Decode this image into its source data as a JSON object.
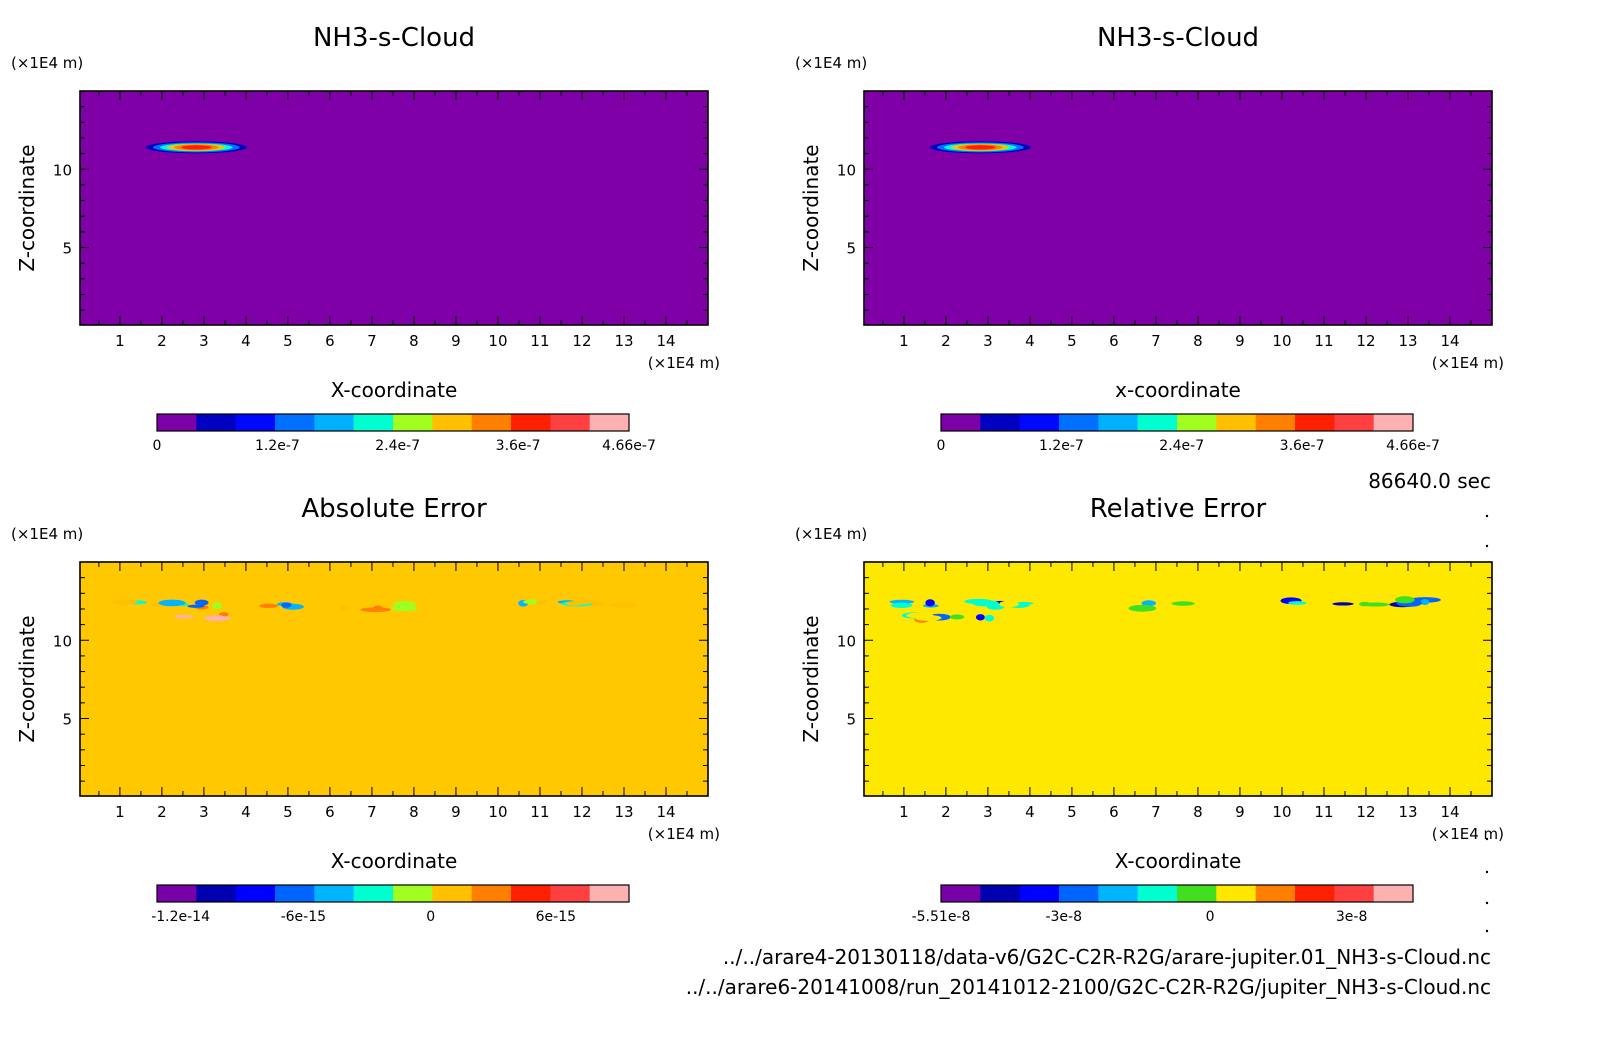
{
  "chart_data": [
    {
      "type": "heatmap",
      "title": "NH3-s-Cloud",
      "xlabel": "X-coordinate",
      "ylabel": "Z-coordinate",
      "x_unit": "(×1E4 m)",
      "y_unit": "(×1E4 m)",
      "xlim": [
        0.05,
        15
      ],
      "ylim": [
        0.05,
        15
      ],
      "x_ticks": [
        1,
        2,
        3,
        4,
        5,
        6,
        7,
        8,
        9,
        10,
        11,
        12,
        13,
        14
      ],
      "y_ticks": [
        5,
        10
      ],
      "background_color": "#8000a8",
      "features": [
        {
          "x": [
            1.5,
            3.9
          ],
          "z": 11.4,
          "level_center": 10,
          "description_level": "peak ~4.2e-7"
        }
      ],
      "colorbar": {
        "colors": [
          "#7b00a8",
          "#0000c0",
          "#0008ff",
          "#0070ff",
          "#00b0ff",
          "#00ffd0",
          "#a0ff20",
          "#ffc000",
          "#ff8000",
          "#ff2000",
          "#ff4040",
          "#ffb0b0"
        ],
        "tick_labels": [
          "0",
          "1.2e-7",
          "2.4e-7",
          "3.6e-7",
          "4.66e-7"
        ],
        "tick_positions": [
          0,
          0.255,
          0.51,
          0.765,
          1
        ]
      }
    },
    {
      "type": "heatmap",
      "title": "NH3-s-Cloud",
      "xlabel": "x-coordinate",
      "ylabel": "Z-coordinate",
      "x_unit": "(×1E4 m)",
      "y_unit": "(×1E4 m)",
      "xlim": [
        0.05,
        15
      ],
      "ylim": [
        0.05,
        15
      ],
      "x_ticks": [
        1,
        2,
        3,
        4,
        5,
        6,
        7,
        8,
        9,
        10,
        11,
        12,
        13,
        14
      ],
      "y_ticks": [
        5,
        10
      ],
      "background_color": "#8000a8",
      "features": [
        {
          "x": [
            1.5,
            3.9
          ],
          "z": 11.4,
          "level_center": 10,
          "description_level": "peak ~4.2e-7"
        }
      ],
      "colorbar": {
        "colors": [
          "#7b00a8",
          "#0000c0",
          "#0008ff",
          "#0070ff",
          "#00b0ff",
          "#00ffd0",
          "#a0ff20",
          "#ffc000",
          "#ff8000",
          "#ff2000",
          "#ff4040",
          "#ffb0b0"
        ],
        "tick_labels": [
          "0",
          "1.2e-7",
          "2.4e-7",
          "3.6e-7",
          "4.66e-7"
        ],
        "tick_positions": [
          0,
          0.255,
          0.51,
          0.765,
          1
        ]
      }
    },
    {
      "type": "heatmap",
      "title": "Absolute Error",
      "xlabel": "X-coordinate",
      "ylabel": "Z-coordinate",
      "x_unit": "(×1E4 m)",
      "y_unit": "(×1E4 m)",
      "xlim": [
        0.05,
        15
      ],
      "ylim": [
        0.05,
        15
      ],
      "x_ticks": [
        1,
        2,
        3,
        4,
        5,
        6,
        7,
        8,
        9,
        10,
        11,
        12,
        13,
        14
      ],
      "y_ticks": [
        5,
        10
      ],
      "background_color": "#ffc800",
      "features": [
        {
          "x": [
            0.9,
            5.2
          ],
          "z": 12.3,
          "level_center": 6,
          "description_level": "small positive"
        },
        {
          "x": [
            6.2,
            7.8
          ],
          "z": 12.1,
          "level_center": 6,
          "description_level": "small positive"
        },
        {
          "x": [
            10.2,
            13.5
          ],
          "z": 12.4,
          "level_center": 6,
          "description_level": "small positive"
        },
        {
          "x": [
            2.1,
            3.8
          ],
          "z": 11.5,
          "level_center": 10,
          "description_level": "mixed ±"
        }
      ],
      "colorbar": {
        "colors": [
          "#7800a8",
          "#0000b0",
          "#0000ff",
          "#0064ff",
          "#00b4ff",
          "#00ffd0",
          "#a0ff20",
          "#ffc000",
          "#ff8000",
          "#ff2000",
          "#ff4040",
          "#ffb0b0"
        ],
        "tick_labels": [
          "-1.2e-14",
          "-6e-15",
          "0",
          "6e-15"
        ],
        "tick_positions": [
          0.05,
          0.31,
          0.58,
          0.845
        ]
      }
    },
    {
      "type": "heatmap",
      "title": "Relative Error",
      "xlabel": "X-coordinate",
      "ylabel": "Z-coordinate",
      "x_unit": "(×1E4 m)",
      "y_unit": "(×1E4 m)",
      "xlim": [
        0.05,
        15
      ],
      "ylim": [
        0.05,
        15
      ],
      "x_ticks": [
        1,
        2,
        3,
        4,
        5,
        6,
        7,
        8,
        9,
        10,
        11,
        12,
        13,
        14
      ],
      "y_ticks": [
        5,
        10
      ],
      "background_color": "#ffe800",
      "features": [
        {
          "x": [
            0.9,
            4.5
          ],
          "z": 12.3,
          "level_center": 4,
          "description_level": "mixed"
        },
        {
          "x": [
            6.6,
            7.9
          ],
          "z": 12.2,
          "level_center": 5,
          "description_level": "mixed"
        },
        {
          "x": [
            10.2,
            13.6
          ],
          "z": 12.4,
          "level_center": 4,
          "description_level": "mixed"
        },
        {
          "x": [
            1.2,
            3.9
          ],
          "z": 11.5,
          "level_center": 5,
          "description_level": "mixed"
        }
      ],
      "colorbar": {
        "colors": [
          "#7800a8",
          "#0000b0",
          "#0000ff",
          "#0064ff",
          "#00b4ff",
          "#00ffd0",
          "#40e020",
          "#ffe800",
          "#ff8000",
          "#ff2000",
          "#ff4040",
          "#ffb0b0"
        ],
        "tick_labels": [
          "-5.51e-8",
          "-3e-8",
          "0",
          "3e-8"
        ],
        "tick_positions": [
          0,
          0.26,
          0.57,
          0.87
        ]
      }
    }
  ],
  "time_label": "86640.0 sec",
  "file_paths": [
    "../../arare4-20130118/data-v6/G2C-C2R-R2G/arare-jupiter.01_NH3-s-Cloud.nc",
    "../../arare6-20141008/run_20141012-2100/G2C-C2R-R2G/jupiter_NH3-s-Cloud.nc"
  ]
}
